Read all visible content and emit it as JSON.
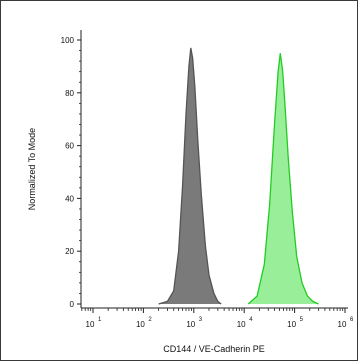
{
  "chart_data": {
    "type": "area",
    "title": "",
    "xlabel": "CD144 / VE-Cadherin PE",
    "ylabel": "Normalized To Mode",
    "x_scale": "log",
    "xlim": [
      10,
      1000000
    ],
    "ylim": [
      0,
      100
    ],
    "x_ticks": [
      10,
      100,
      1000,
      10000,
      100000,
      1000000
    ],
    "x_tick_labels": [
      {
        "base": "10",
        "exp": "1"
      },
      {
        "base": "10",
        "exp": "2"
      },
      {
        "base": "10",
        "exp": "3"
      },
      {
        "base": "10",
        "exp": "4"
      },
      {
        "base": "10",
        "exp": "5"
      },
      {
        "base": "10",
        "exp": "6"
      }
    ],
    "y_ticks": [
      0,
      20,
      40,
      60,
      80,
      100
    ],
    "y_tick_labels": [
      "0",
      "20",
      "40",
      "60",
      "80",
      "100"
    ],
    "grid": false,
    "legend": "none",
    "series": [
      {
        "color": "#555555",
        "fill": "#7a7a7a",
        "x": [
          200,
          300,
          400,
          500,
          600,
          700,
          800,
          870,
          950,
          1050,
          1200,
          1400,
          1700,
          2000,
          2500,
          3000,
          3500
        ],
        "y": [
          0,
          1,
          5,
          20,
          45,
          72,
          90,
          97,
          93,
          82,
          62,
          42,
          22,
          11,
          4,
          1,
          0
        ]
      },
      {
        "color": "#22cc22",
        "fill": "#99ee99",
        "x": [
          12000,
          18000,
          25000,
          32000,
          40000,
          47000,
          52000,
          58000,
          65000,
          75000,
          90000,
          110000,
          140000,
          180000,
          230000,
          300000
        ],
        "y": [
          0,
          3,
          15,
          38,
          68,
          88,
          95,
          88,
          74,
          55,
          35,
          18,
          8,
          3,
          1,
          0
        ]
      }
    ]
  }
}
